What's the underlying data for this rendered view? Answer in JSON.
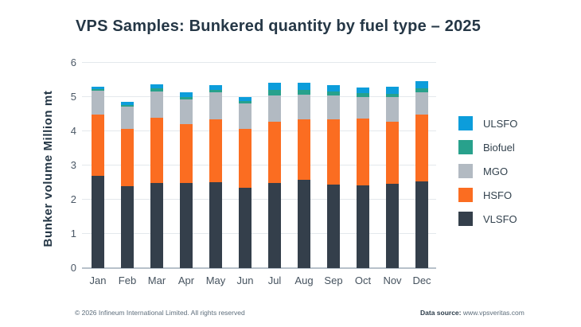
{
  "title": "VPS Samples: Bunkered quantity by fuel type – 2025",
  "chart_data": {
    "type": "bar",
    "stacked": true,
    "title": "VPS Samples: Bunkered quantity by fuel type – 2025",
    "ylabel": "Bunker volume Million mt",
    "xlabel": "",
    "ylim": [
      0,
      6
    ],
    "yticks": [
      0,
      1,
      2,
      3,
      4,
      5,
      6
    ],
    "grid": true,
    "legend_position": "right",
    "categories": [
      "Jan",
      "Feb",
      "Mar",
      "Apr",
      "May",
      "Jun",
      "Jul",
      "Aug",
      "Sep",
      "Oct",
      "Nov",
      "Dec"
    ],
    "series": [
      {
        "name": "VLSFO",
        "color": "#343f4b",
        "values": [
          2.7,
          2.4,
          2.5,
          2.5,
          2.52,
          2.34,
          2.49,
          2.59,
          2.45,
          2.43,
          2.47,
          2.54
        ]
      },
      {
        "name": "HSFO",
        "color": "#fb6d21",
        "values": [
          1.8,
          1.67,
          1.9,
          1.72,
          1.82,
          1.72,
          1.8,
          1.76,
          1.91,
          1.94,
          1.82,
          1.96
        ]
      },
      {
        "name": "MGO",
        "color": "#b2bac2",
        "values": [
          0.68,
          0.64,
          0.76,
          0.72,
          0.8,
          0.76,
          0.76,
          0.72,
          0.69,
          0.64,
          0.7,
          0.65
        ]
      },
      {
        "name": "Biofuel",
        "color": "#28a18c",
        "values": [
          0.05,
          0.06,
          0.09,
          0.06,
          0.06,
          0.07,
          0.15,
          0.15,
          0.11,
          0.1,
          0.11,
          0.11
        ]
      },
      {
        "name": "ULSFO",
        "color": "#0c9ddb",
        "values": [
          0.08,
          0.1,
          0.12,
          0.13,
          0.14,
          0.11,
          0.21,
          0.21,
          0.2,
          0.18,
          0.2,
          0.21
        ]
      }
    ],
    "legend_order": [
      "ULSFO",
      "Biofuel",
      "MGO",
      "HSFO",
      "VLSFO"
    ]
  },
  "footer": {
    "copyright": "© 2026 Infineum International Limited. All rights reserved",
    "source_label": "Data source:",
    "source_url": "www.vpsveritas.com"
  }
}
